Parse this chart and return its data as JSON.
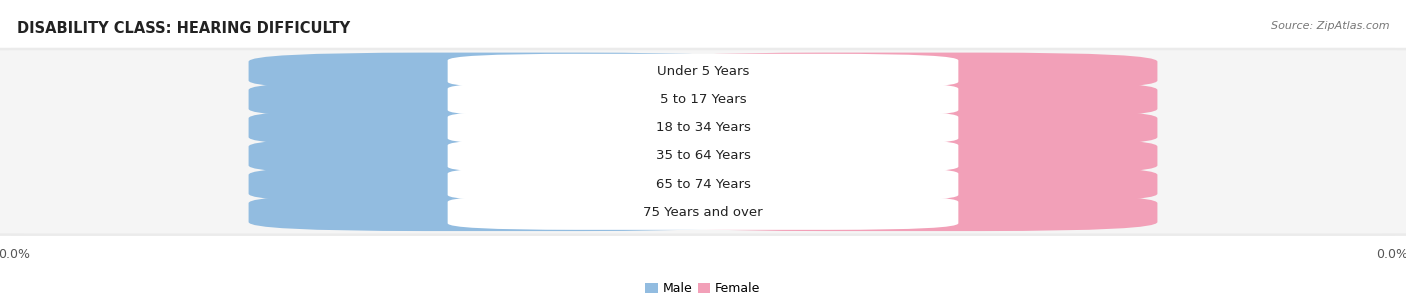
{
  "title": "DISABILITY CLASS: HEARING DIFFICULTY",
  "source": "Source: ZipAtlas.com",
  "categories": [
    "Under 5 Years",
    "5 to 17 Years",
    "18 to 34 Years",
    "35 to 64 Years",
    "65 to 74 Years",
    "75 Years and over"
  ],
  "male_values": [
    0.0,
    0.0,
    0.0,
    0.0,
    0.0,
    0.0
  ],
  "female_values": [
    0.0,
    0.0,
    0.0,
    0.0,
    0.0,
    0.0
  ],
  "male_color": "#92bce0",
  "female_color": "#f2a0b8",
  "row_bg_color": "#ebebeb",
  "row_bg_color_inner": "#f5f5f5",
  "title_fontsize": 10.5,
  "source_fontsize": 8,
  "category_fontsize": 9.5,
  "value_fontsize": 8.5,
  "legend_fontsize": 9,
  "axis_fontsize": 9,
  "figsize": [
    14.06,
    3.04
  ],
  "dpi": 100
}
